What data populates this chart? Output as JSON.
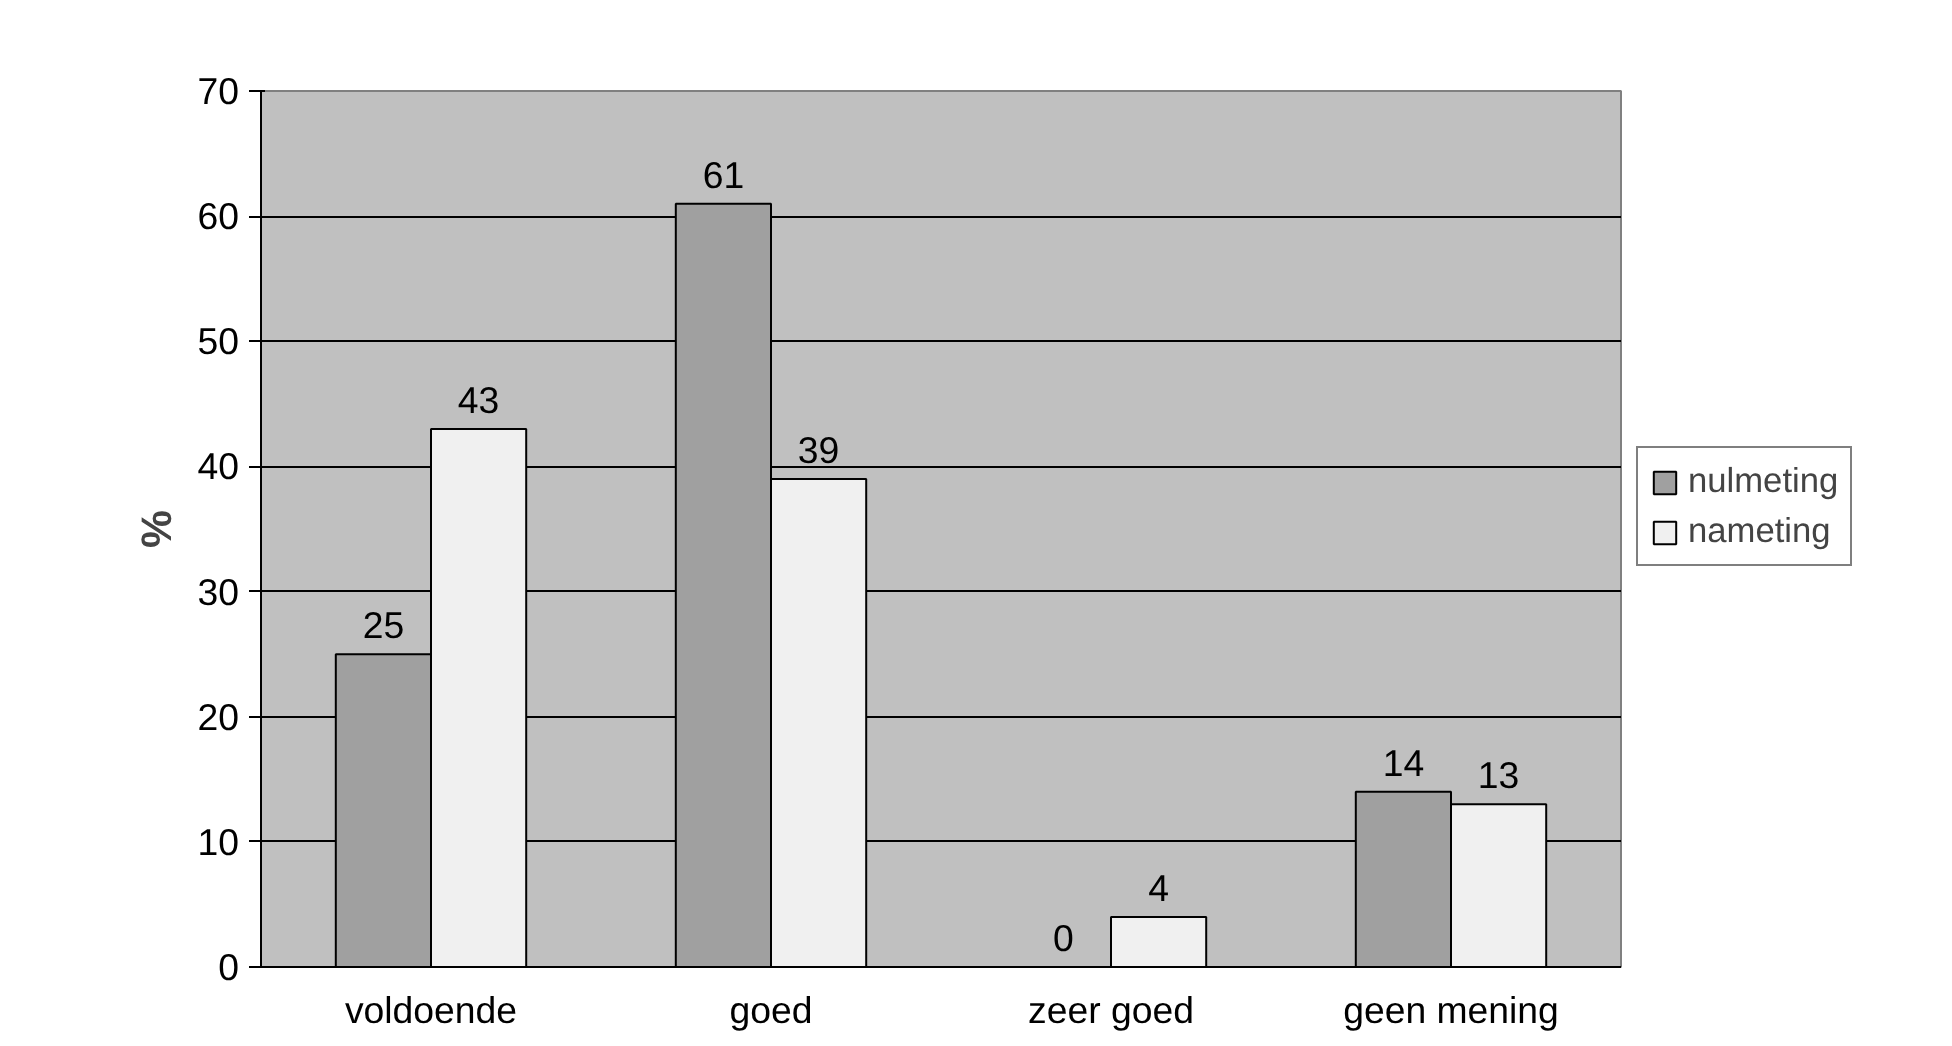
{
  "chart_data": {
    "type": "bar",
    "ylabel": "%",
    "categories": [
      "voldoende",
      "goed",
      "zeer goed",
      "geen mening"
    ],
    "series": [
      {
        "name": "nulmeting",
        "color": "#a0a0a0",
        "values": [
          25,
          61,
          0,
          14
        ]
      },
      {
        "name": "nameting",
        "color": "#f0f0f0",
        "values": [
          43,
          39,
          4,
          13
        ]
      }
    ],
    "ylim": [
      0,
      70
    ],
    "yticks": [
      0,
      10,
      20,
      30,
      40,
      50,
      60,
      70
    ],
    "grid": "y",
    "legend": "right",
    "data_labels": true
  }
}
